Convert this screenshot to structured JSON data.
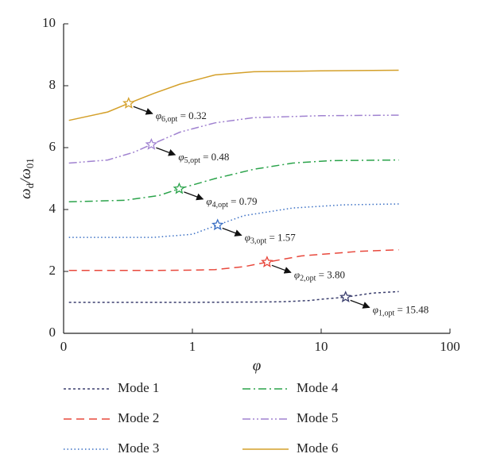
{
  "chart_data": {
    "type": "line",
    "xlabel": "φ",
    "ylabel": {
      "main1": "ω",
      "sub1": "d",
      "main2": "/ω",
      "sub2": "01"
    },
    "xscale": "log",
    "xlim": [
      0.1,
      100
    ],
    "xticks": [
      {
        "value": 0.1,
        "label": "0"
      },
      1,
      10,
      100
    ],
    "ylim": [
      0,
      10
    ],
    "yticks": [
      0,
      2,
      4,
      6,
      8,
      10
    ],
    "series": [
      {
        "name": "Mode 1",
        "color": "#3b3f6e",
        "dash": "3,3",
        "x": [
          0.11,
          0.3,
          1,
          3,
          5,
          8,
          10,
          15.48,
          25,
          40
        ],
        "values": [
          1.0,
          1.0,
          1.0,
          1.01,
          1.02,
          1.06,
          1.1,
          1.17,
          1.3,
          1.35
        ]
      },
      {
        "name": "Mode 2",
        "color": "#e8483c",
        "dash": "10,6",
        "x": [
          0.11,
          0.5,
          1,
          1.5,
          2.5,
          3.8,
          7,
          20,
          40
        ],
        "values": [
          2.03,
          2.03,
          2.04,
          2.06,
          2.15,
          2.3,
          2.5,
          2.65,
          2.7
        ]
      },
      {
        "name": "Mode 3",
        "color": "#3a6fc4",
        "dash": "1.5,3",
        "x": [
          0.11,
          0.5,
          1,
          1.57,
          2.5,
          6,
          15,
          40
        ],
        "values": [
          3.1,
          3.1,
          3.2,
          3.5,
          3.8,
          4.05,
          4.15,
          4.18
        ]
      },
      {
        "name": "Mode 4",
        "color": "#2aa34a",
        "dash": "10,4,2,4",
        "x": [
          0.11,
          0.3,
          0.55,
          0.79,
          1.5,
          3,
          6,
          12,
          40
        ],
        "values": [
          4.25,
          4.3,
          4.45,
          4.67,
          5.0,
          5.3,
          5.5,
          5.58,
          5.6
        ]
      },
      {
        "name": "Mode 5",
        "color": "#a082d0",
        "dash": "10,3,2,3,2,3",
        "x": [
          0.11,
          0.22,
          0.35,
          0.48,
          0.8,
          1.5,
          3,
          10,
          40
        ],
        "values": [
          5.5,
          5.6,
          5.85,
          6.1,
          6.5,
          6.8,
          6.97,
          7.03,
          7.05
        ]
      },
      {
        "name": "Mode 6",
        "color": "#d4a02a",
        "dash": "",
        "x": [
          0.11,
          0.22,
          0.32,
          0.5,
          0.8,
          1.5,
          3,
          10,
          40
        ],
        "values": [
          6.88,
          7.15,
          7.43,
          7.75,
          8.05,
          8.35,
          8.45,
          8.48,
          8.5
        ]
      }
    ],
    "annotations": [
      {
        "symbol": "φ",
        "subscript": "6,opt",
        "text": " = 0.32",
        "x": 0.32,
        "y": 7.43
      },
      {
        "symbol": "φ",
        "subscript": "5,opt",
        "text": " = 0.48",
        "x": 0.48,
        "y": 6.1
      },
      {
        "symbol": "φ",
        "subscript": "4,opt",
        "text": " = 0.79",
        "x": 0.79,
        "y": 4.67
      },
      {
        "symbol": "φ",
        "subscript": "3,opt",
        "text": " = 1.57",
        "x": 1.57,
        "y": 3.5
      },
      {
        "symbol": "φ",
        "subscript": "2,opt",
        "text": " = 3.80",
        "x": 3.8,
        "y": 2.3
      },
      {
        "symbol": "φ",
        "subscript": "1,opt",
        "text": " = 15.48",
        "x": 15.48,
        "y": 1.17
      }
    ]
  }
}
